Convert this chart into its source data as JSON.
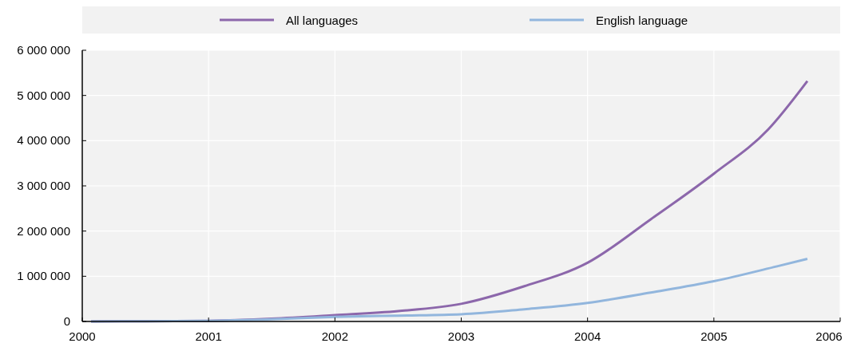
{
  "chart_data": {
    "type": "line",
    "xlim": [
      2000,
      2006
    ],
    "xticks": [
      2000,
      2001,
      2002,
      2003,
      2004,
      2005,
      2006
    ],
    "ylim": [
      0,
      6000000
    ],
    "yticks": [
      {
        "value": 0,
        "label": "0"
      },
      {
        "value": 1000000,
        "label": "1 000 000"
      },
      {
        "value": 2000000,
        "label": "2 000 000"
      },
      {
        "value": 3000000,
        "label": "3 000 000"
      },
      {
        "value": 4000000,
        "label": "4 000 000"
      },
      {
        "value": 5000000,
        "label": "5 000 000"
      },
      {
        "value": 6000000,
        "label": "6 000 000"
      }
    ],
    "grid": true,
    "legend": "top",
    "line_style": "solid",
    "series": [
      {
        "name": "All languages",
        "color": "#8c67ab",
        "x": [
          2000.07,
          2000.5,
          2001,
          2001.5,
          2002,
          2002.5,
          2003,
          2003.5,
          2004,
          2004.5,
          2005,
          2005.43,
          2005.74
        ],
        "values": [
          0,
          5000,
          15000,
          60000,
          140000,
          230000,
          390000,
          780000,
          1300000,
          2260000,
          3270000,
          4250000,
          5320000
        ]
      },
      {
        "name": "English language",
        "color": "#92b6dd",
        "x": [
          2000.07,
          2000.5,
          2001,
          2001.5,
          2002,
          2002.5,
          2003,
          2003.5,
          2004,
          2004.5,
          2005,
          2005.5,
          2005.74
        ],
        "values": [
          0,
          5000,
          15000,
          50000,
          100000,
          130000,
          160000,
          270000,
          410000,
          640000,
          890000,
          1220000,
          1385000
        ]
      }
    ]
  }
}
